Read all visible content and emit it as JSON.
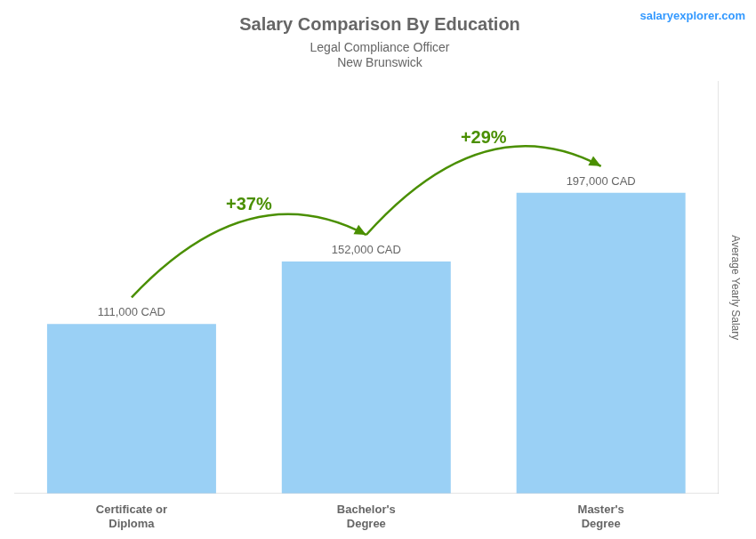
{
  "chart_data": {
    "type": "bar",
    "title": "Salary Comparison By Education",
    "subtitle": [
      "Legal Compliance Officer",
      "New Brunswick"
    ],
    "ylabel": "Average Yearly Salary",
    "categories": [
      "Certificate or\nDiploma",
      "Bachelor's\nDegree",
      "Master's\nDegree"
    ],
    "values": [
      111000,
      152000,
      197000
    ],
    "value_labels": [
      "111,000 CAD",
      "152,000 CAD",
      "197,000 CAD"
    ],
    "data_labels": true,
    "ylim": [
      0,
      270000
    ],
    "tick_labels": "x",
    "grid": false,
    "annotations": [
      {
        "text": "+37%",
        "from": "Certificate or\nDiploma",
        "to": "Bachelor's\nDegree"
      },
      {
        "text": "+29%",
        "from": "Bachelor's\nDegree",
        "to": "Master's\nDegree"
      },
      {
        "text": "salaryexplorer.com"
      }
    ]
  }
}
